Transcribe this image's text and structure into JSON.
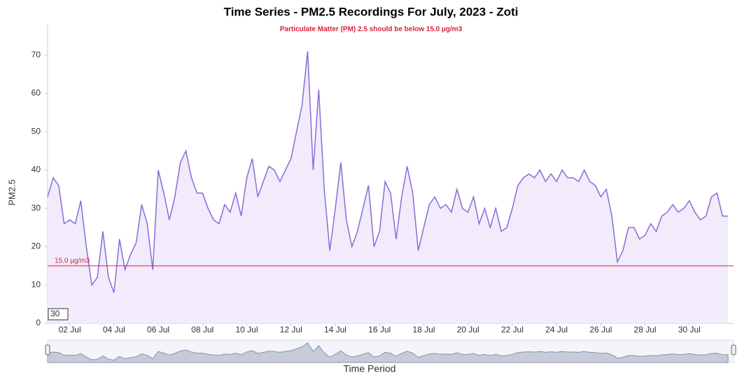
{
  "chart_data": {
    "type": "line",
    "title": "Time Series - PM2.5 Recordings For July, 2023 - Zoti",
    "subtitle": "Particulate Matter (PM) 2.5 should be below 15.0 µg/m3",
    "y_label": "PM2.5",
    "x_label": "Time Period",
    "rolling_period": 30,
    "threshold": {
      "value": 15,
      "label": "15.0 µg/m3",
      "color": "#d9213a"
    },
    "xlim": [
      1,
      32
    ],
    "xticks": [
      {
        "value": 2,
        "label": "02 Jul"
      },
      {
        "value": 4,
        "label": "04 Jul"
      },
      {
        "value": 6,
        "label": "06 Jul"
      },
      {
        "value": 8,
        "label": "08 Jul"
      },
      {
        "value": 10,
        "label": "10 Jul"
      },
      {
        "value": 12,
        "label": "12 Jul"
      },
      {
        "value": 14,
        "label": "14 Jul"
      },
      {
        "value": 16,
        "label": "16 Jul"
      },
      {
        "value": 18,
        "label": "18 Jul"
      },
      {
        "value": 20,
        "label": "20 Jul"
      },
      {
        "value": 22,
        "label": "22 Jul"
      },
      {
        "value": 24,
        "label": "24 Jul"
      },
      {
        "value": 26,
        "label": "26 Jul"
      },
      {
        "value": 28,
        "label": "28 Jul"
      },
      {
        "value": 30,
        "label": "30 Jul"
      }
    ],
    "ylim": [
      0,
      78
    ],
    "yticks": [
      0,
      10,
      20,
      30,
      40,
      50,
      60,
      70
    ],
    "x": [
      1,
      1.25,
      1.5,
      1.75,
      2,
      2.25,
      2.5,
      2.75,
      3,
      3.25,
      3.5,
      3.75,
      4,
      4.25,
      4.5,
      4.75,
      5,
      5.25,
      5.5,
      5.75,
      6,
      6.25,
      6.5,
      6.75,
      7,
      7.25,
      7.5,
      7.75,
      8,
      8.25,
      8.5,
      8.75,
      9,
      9.25,
      9.5,
      9.75,
      10,
      10.25,
      10.5,
      10.75,
      11,
      11.25,
      11.5,
      11.75,
      12,
      12.25,
      12.5,
      12.75,
      13,
      13.25,
      13.5,
      13.75,
      14,
      14.25,
      14.5,
      14.75,
      15,
      15.25,
      15.5,
      15.75,
      16,
      16.25,
      16.5,
      16.75,
      17,
      17.25,
      17.5,
      17.75,
      18,
      18.25,
      18.5,
      18.75,
      19,
      19.25,
      19.5,
      19.75,
      20,
      20.25,
      20.5,
      20.75,
      21,
      21.25,
      21.5,
      21.75,
      22,
      22.25,
      22.5,
      22.75,
      23,
      23.25,
      23.5,
      23.75,
      24,
      24.25,
      24.5,
      24.75,
      25,
      25.25,
      25.5,
      25.75,
      26,
      26.25,
      26.5,
      26.75,
      27,
      27.25,
      27.5,
      27.75,
      28,
      28.25,
      28.5,
      28.75,
      29,
      29.25,
      29.5,
      29.75,
      30,
      30.25,
      30.5,
      30.75,
      31,
      31.25,
      31.5,
      31.75
    ],
    "series": [
      {
        "name": "PM2.5",
        "color": "#8a6cd8",
        "fill": "#f1ebfb",
        "values": [
          33,
          38,
          36,
          26,
          27,
          26,
          32,
          20,
          10,
          12,
          24,
          12,
          8,
          22,
          14,
          18,
          21,
          31,
          26,
          14,
          40,
          34,
          27,
          33,
          42,
          45,
          38,
          34,
          34,
          30,
          27,
          26,
          31,
          29,
          34,
          28,
          38,
          43,
          33,
          37,
          41,
          40,
          37,
          40,
          43,
          50,
          57,
          71,
          40,
          61,
          35,
          19,
          30,
          42,
          27,
          20,
          24,
          30,
          36,
          20,
          24,
          37,
          34,
          22,
          33,
          41,
          34,
          19,
          25,
          31,
          33,
          30,
          31,
          29,
          35,
          30,
          29,
          33,
          26,
          30,
          25,
          30,
          24,
          25,
          30,
          36,
          38,
          39,
          38,
          40,
          37,
          39,
          37,
          40,
          38,
          38,
          37,
          40,
          37,
          36,
          33,
          35,
          28,
          16,
          19,
          25,
          25,
          22,
          23,
          26,
          24,
          28,
          29,
          31,
          29,
          30,
          32,
          29,
          27,
          28,
          33,
          34,
          28,
          28
        ]
      }
    ]
  }
}
